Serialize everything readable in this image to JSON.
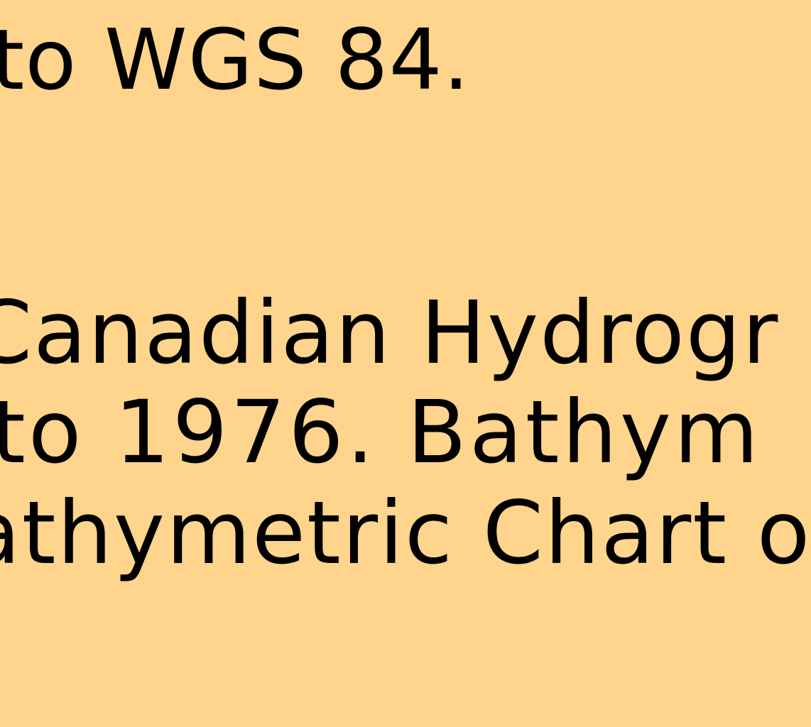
{
  "colors": {
    "background": "#FFD48D",
    "text": "#000000"
  },
  "map_notes": {
    "lines": [
      "to WGS 84.",
      "Canadian Hydrogr",
      "to 1976. Bathym",
      "athymetric Chart o"
    ]
  }
}
